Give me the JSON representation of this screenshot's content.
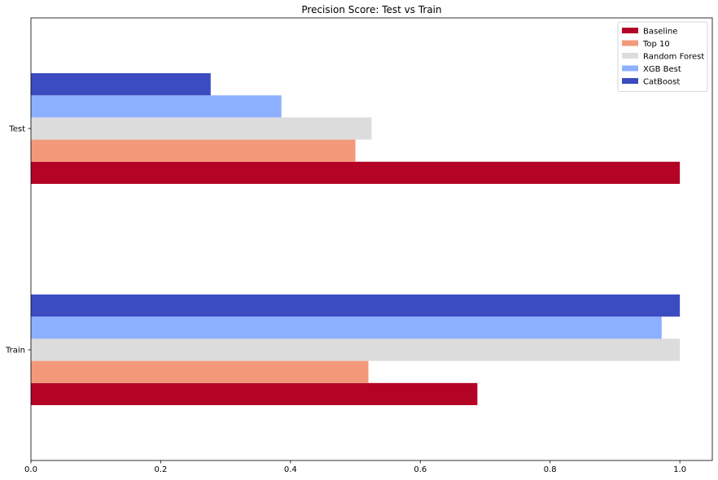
{
  "chart_data": {
    "type": "bar",
    "orientation": "horizontal",
    "title": "Precision Score: Test vs Train",
    "xlabel": "",
    "ylabel": "",
    "categories": [
      "Train",
      "Test"
    ],
    "xlim": [
      0,
      1.05
    ],
    "xticks": [
      "0.0",
      "0.2",
      "0.4",
      "0.6",
      "0.8",
      "1.0"
    ],
    "grid": false,
    "legend_position": "top-right",
    "series": [
      {
        "name": "Baseline",
        "color": "#b40426",
        "values": [
          0.688,
          1.0
        ]
      },
      {
        "name": "Top 10",
        "color": "#f4987a",
        "values": [
          0.52,
          0.5
        ]
      },
      {
        "name": "Random Forest",
        "color": "#dddcdc",
        "values": [
          1.0,
          0.525
        ]
      },
      {
        "name": "XGB Best",
        "color": "#8db0fe",
        "values": [
          0.972,
          0.386
        ]
      },
      {
        "name": "CatBoost",
        "color": "#3b4cc0",
        "values": [
          1.0,
          0.277
        ]
      }
    ]
  }
}
